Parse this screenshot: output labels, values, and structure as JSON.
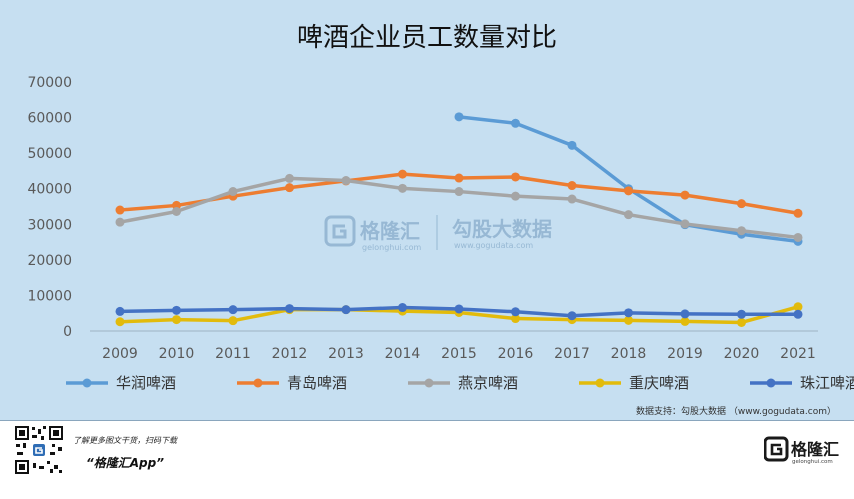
{
  "chart_data": {
    "type": "line",
    "title": "啤酒企业员工数量对比",
    "xlabel": "",
    "ylabel": "",
    "ylim": [
      0,
      70000
    ],
    "yticks": [
      "0",
      "10000",
      "20000",
      "30000",
      "40000",
      "50000",
      "60000",
      "70000"
    ],
    "x": [
      "2009",
      "2010",
      "2011",
      "2012",
      "2013",
      "2014",
      "2015",
      "2016",
      "2017",
      "2018",
      "2019",
      "2020",
      "2021"
    ],
    "series": [
      {
        "name": "华润啤酒",
        "color": "#5b9bd5",
        "values": [
          null,
          null,
          null,
          null,
          null,
          null,
          60200,
          58400,
          52200,
          40000,
          29900,
          27200,
          25200
        ]
      },
      {
        "name": "青岛啤酒",
        "color": "#ed7d31",
        "values": [
          34000,
          35300,
          37900,
          40300,
          42200,
          44100,
          43000,
          43300,
          40900,
          39400,
          38200,
          35800,
          33100
        ]
      },
      {
        "name": "燕京啤酒",
        "color": "#a5a5a5",
        "values": [
          30600,
          33600,
          39200,
          42900,
          42300,
          40100,
          39200,
          37900,
          37100,
          32700,
          30100,
          28200,
          26300
        ]
      },
      {
        "name": "重庆啤酒",
        "color": "#e2bb0c",
        "values": [
          2600,
          3200,
          2900,
          6000,
          6000,
          5600,
          5200,
          3500,
          3200,
          3000,
          2700,
          2400,
          6800
        ]
      },
      {
        "name": "珠江啤酒",
        "color": "#4472c4",
        "values": [
          5500,
          5800,
          6000,
          6300,
          6000,
          6600,
          6200,
          5400,
          4300,
          5100,
          4800,
          4700,
          4700
        ]
      }
    ],
    "legend_position": "bottom",
    "grid": false
  },
  "watermark": {
    "brand": "格隆汇",
    "brand_sub": "gelonghui.com",
    "partner": "勾股大数据",
    "partner_url": "www.gogudata.com"
  },
  "source": "数据支持：勾股大数据 （www.gogudata.com）",
  "footer": {
    "promo": "了解更多图文干货，扫码下载",
    "app_name": "“格隆汇App”",
    "brand": "格隆汇",
    "brand_sub": "gelonghui.com"
  }
}
